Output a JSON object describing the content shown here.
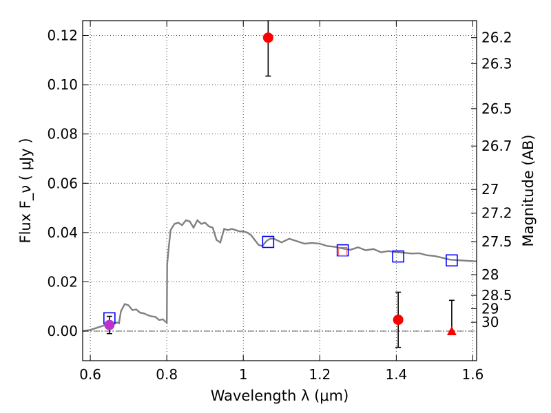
{
  "chart_data": {
    "type": "scatter",
    "title": "",
    "xlabel": "Wavelength  λ (μm)",
    "ylabel": "Flux  F_ν  ( μJy )",
    "ylabel_right": "Magnitude (AB)",
    "xlim": [
      0.58,
      1.61
    ],
    "ylim": [
      -0.012,
      0.126
    ],
    "grid": true,
    "legend": "none",
    "x_ticks": [
      0.6,
      0.8,
      1.0,
      1.2,
      1.4,
      1.6
    ],
    "x_tick_labels": [
      "0.6",
      "0.8",
      "1",
      "1.2",
      "1.4",
      "1.6"
    ],
    "y_ticks": [
      0.0,
      0.02,
      0.04,
      0.06,
      0.08,
      0.1,
      0.12
    ],
    "y_tick_labels": [
      "0.00",
      "0.02",
      "0.04",
      "0.06",
      "0.08",
      "0.10",
      "0.12"
    ],
    "right_ticks": [
      {
        "flux": 0.1191,
        "label": "26.2"
      },
      {
        "flux": 0.1086,
        "label": "26.3"
      },
      {
        "flux": 0.0903,
        "label": "26.5"
      },
      {
        "flux": 0.0751,
        "label": "26.7"
      },
      {
        "flux": 0.0575,
        "label": "27"
      },
      {
        "flux": 0.0479,
        "label": "27.2"
      },
      {
        "flux": 0.0363,
        "label": "27.5"
      },
      {
        "flux": 0.0229,
        "label": "28"
      },
      {
        "flux": 0.0145,
        "label": "28.5"
      },
      {
        "flux": 0.0091,
        "label": "29"
      },
      {
        "flux": 0.0036,
        "label": "30"
      }
    ],
    "zero_line": 0.0,
    "model_sed": {
      "color": "#808080",
      "x": [
        0.58,
        0.6,
        0.62,
        0.64,
        0.65,
        0.66,
        0.67,
        0.675,
        0.68,
        0.69,
        0.7,
        0.71,
        0.72,
        0.73,
        0.74,
        0.75,
        0.76,
        0.77,
        0.78,
        0.79,
        0.795,
        0.8,
        0.801,
        0.805,
        0.81,
        0.82,
        0.83,
        0.84,
        0.85,
        0.86,
        0.87,
        0.88,
        0.89,
        0.9,
        0.91,
        0.92,
        0.93,
        0.94,
        0.95,
        0.96,
        0.97,
        0.98,
        0.99,
        1.0,
        1.01,
        1.02,
        1.03,
        1.04,
        1.05,
        1.06,
        1.07,
        1.08,
        1.1,
        1.12,
        1.14,
        1.16,
        1.18,
        1.2,
        1.22,
        1.24,
        1.26,
        1.28,
        1.3,
        1.32,
        1.34,
        1.36,
        1.38,
        1.4,
        1.42,
        1.44,
        1.46,
        1.48,
        1.5,
        1.52,
        1.54,
        1.56,
        1.58,
        1.6,
        1.61
      ],
      "y": [
        0.0,
        0.0005,
        0.0015,
        0.0025,
        0.0027,
        0.003,
        0.0035,
        0.0032,
        0.008,
        0.011,
        0.0105,
        0.0085,
        0.0088,
        0.0075,
        0.0072,
        0.0065,
        0.006,
        0.0058,
        0.0045,
        0.0048,
        0.004,
        0.0035,
        0.027,
        0.034,
        0.041,
        0.0435,
        0.044,
        0.043,
        0.045,
        0.0445,
        0.042,
        0.045,
        0.0435,
        0.044,
        0.0425,
        0.042,
        0.037,
        0.036,
        0.0415,
        0.041,
        0.0415,
        0.041,
        0.0405,
        0.0405,
        0.04,
        0.039,
        0.037,
        0.035,
        0.0345,
        0.0365,
        0.0375,
        0.0375,
        0.036,
        0.0375,
        0.0365,
        0.0355,
        0.0358,
        0.0355,
        0.0345,
        0.0342,
        0.0335,
        0.033,
        0.034,
        0.0328,
        0.0333,
        0.032,
        0.0325,
        0.032,
        0.0318,
        0.0315,
        0.0316,
        0.0308,
        0.0305,
        0.0298,
        0.029,
        0.0288,
        0.0286,
        0.0284,
        0.0283
      ]
    },
    "model_points": {
      "marker": "open-square",
      "color": "#0000ff",
      "x": [
        0.65,
        1.065,
        1.26,
        1.405,
        1.545
      ],
      "y": [
        0.0052,
        0.0362,
        0.0328,
        0.0303,
        0.0287
      ]
    },
    "model_point_inner": {
      "marker": "open-square",
      "color": "#ff5555",
      "x": [
        1.26
      ],
      "y": [
        0.0323
      ]
    },
    "observed": {
      "marker": "filled-circle",
      "color": "#ff0000",
      "x": [
        1.065,
        1.405
      ],
      "y": [
        0.1191,
        0.0046
      ],
      "err_low": [
        0.0156,
        0.0112
      ],
      "err_high": [
        0.013,
        0.0112
      ]
    },
    "observed_violet": {
      "marker": "filled-circle",
      "color": "#bb33cc",
      "x": [
        0.65
      ],
      "y": [
        0.0025
      ],
      "err_low": [
        0.0035
      ],
      "err_high": [
        0.0035
      ]
    },
    "upper_limit": {
      "marker": "filled-triangle",
      "color": "#ff0000",
      "x": [
        1.545
      ],
      "y": [
        0.0
      ],
      "err_high": [
        0.0125
      ]
    }
  }
}
